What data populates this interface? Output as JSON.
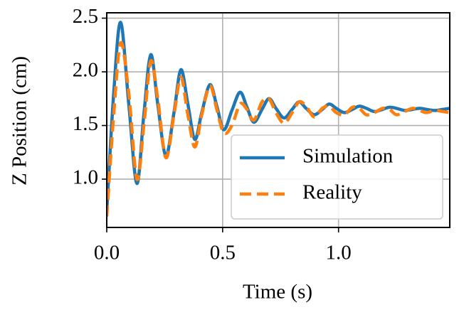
{
  "chart_data": {
    "type": "line",
    "x_label": "Time (s)",
    "y_label": "Z Position (cm)",
    "x": [
      0,
      0.03,
      0.06,
      0.095,
      0.13,
      0.16,
      0.19,
      0.22,
      0.255,
      0.29,
      0.32,
      0.35,
      0.38,
      0.41,
      0.445,
      0.475,
      0.505,
      0.54,
      0.575,
      0.605,
      0.635,
      0.67,
      0.7,
      0.73,
      0.765,
      0.8,
      0.83,
      0.86,
      0.895,
      0.93,
      0.96,
      0.99,
      1.025,
      1.06,
      1.09,
      1.12,
      1.155,
      1.19,
      1.22,
      1.25,
      1.285,
      1.32,
      1.35,
      1.38,
      1.415,
      1.45,
      1.48
    ],
    "series": [
      {
        "name": "Simulation",
        "color": "#1f77b4",
        "dash": "solid",
        "values": [
          0.7,
          1.8,
          2.46,
          1.7,
          0.96,
          1.6,
          2.16,
          1.7,
          1.22,
          1.62,
          2.02,
          1.7,
          1.37,
          1.62,
          1.88,
          1.68,
          1.46,
          1.64,
          1.81,
          1.67,
          1.53,
          1.65,
          1.75,
          1.66,
          1.57,
          1.65,
          1.72,
          1.66,
          1.6,
          1.65,
          1.7,
          1.66,
          1.62,
          1.65,
          1.68,
          1.66,
          1.63,
          1.65,
          1.67,
          1.66,
          1.64,
          1.65,
          1.66,
          1.65,
          1.64,
          1.65,
          1.66
        ]
      },
      {
        "name": "Reality",
        "color": "#ff7f0e",
        "dash": "dashed",
        "values": [
          0.65,
          1.6,
          2.27,
          1.8,
          1.0,
          1.5,
          2.1,
          1.75,
          1.2,
          1.6,
          1.95,
          1.6,
          1.3,
          1.6,
          1.87,
          1.65,
          1.43,
          1.5,
          1.7,
          1.65,
          1.55,
          1.72,
          1.75,
          1.62,
          1.52,
          1.62,
          1.72,
          1.68,
          1.58,
          1.66,
          1.68,
          1.62,
          1.6,
          1.67,
          1.66,
          1.6,
          1.62,
          1.66,
          1.65,
          1.6,
          1.63,
          1.66,
          1.64,
          1.62,
          1.64,
          1.63,
          1.62
        ]
      }
    ],
    "xlim": [
      0,
      1.48
    ],
    "ylim": [
      0.55,
      2.55
    ],
    "xticks": [
      {
        "value": 0,
        "label": "0.0"
      },
      0.5,
      {
        "value": 1,
        "label": "1.0"
      }
    ],
    "yticks": [
      {
        "value": 1,
        "label": "1.0"
      },
      1.5,
      {
        "value": 2,
        "label": "2.0"
      },
      2.5
    ],
    "grid": true,
    "legend": "lower right"
  }
}
